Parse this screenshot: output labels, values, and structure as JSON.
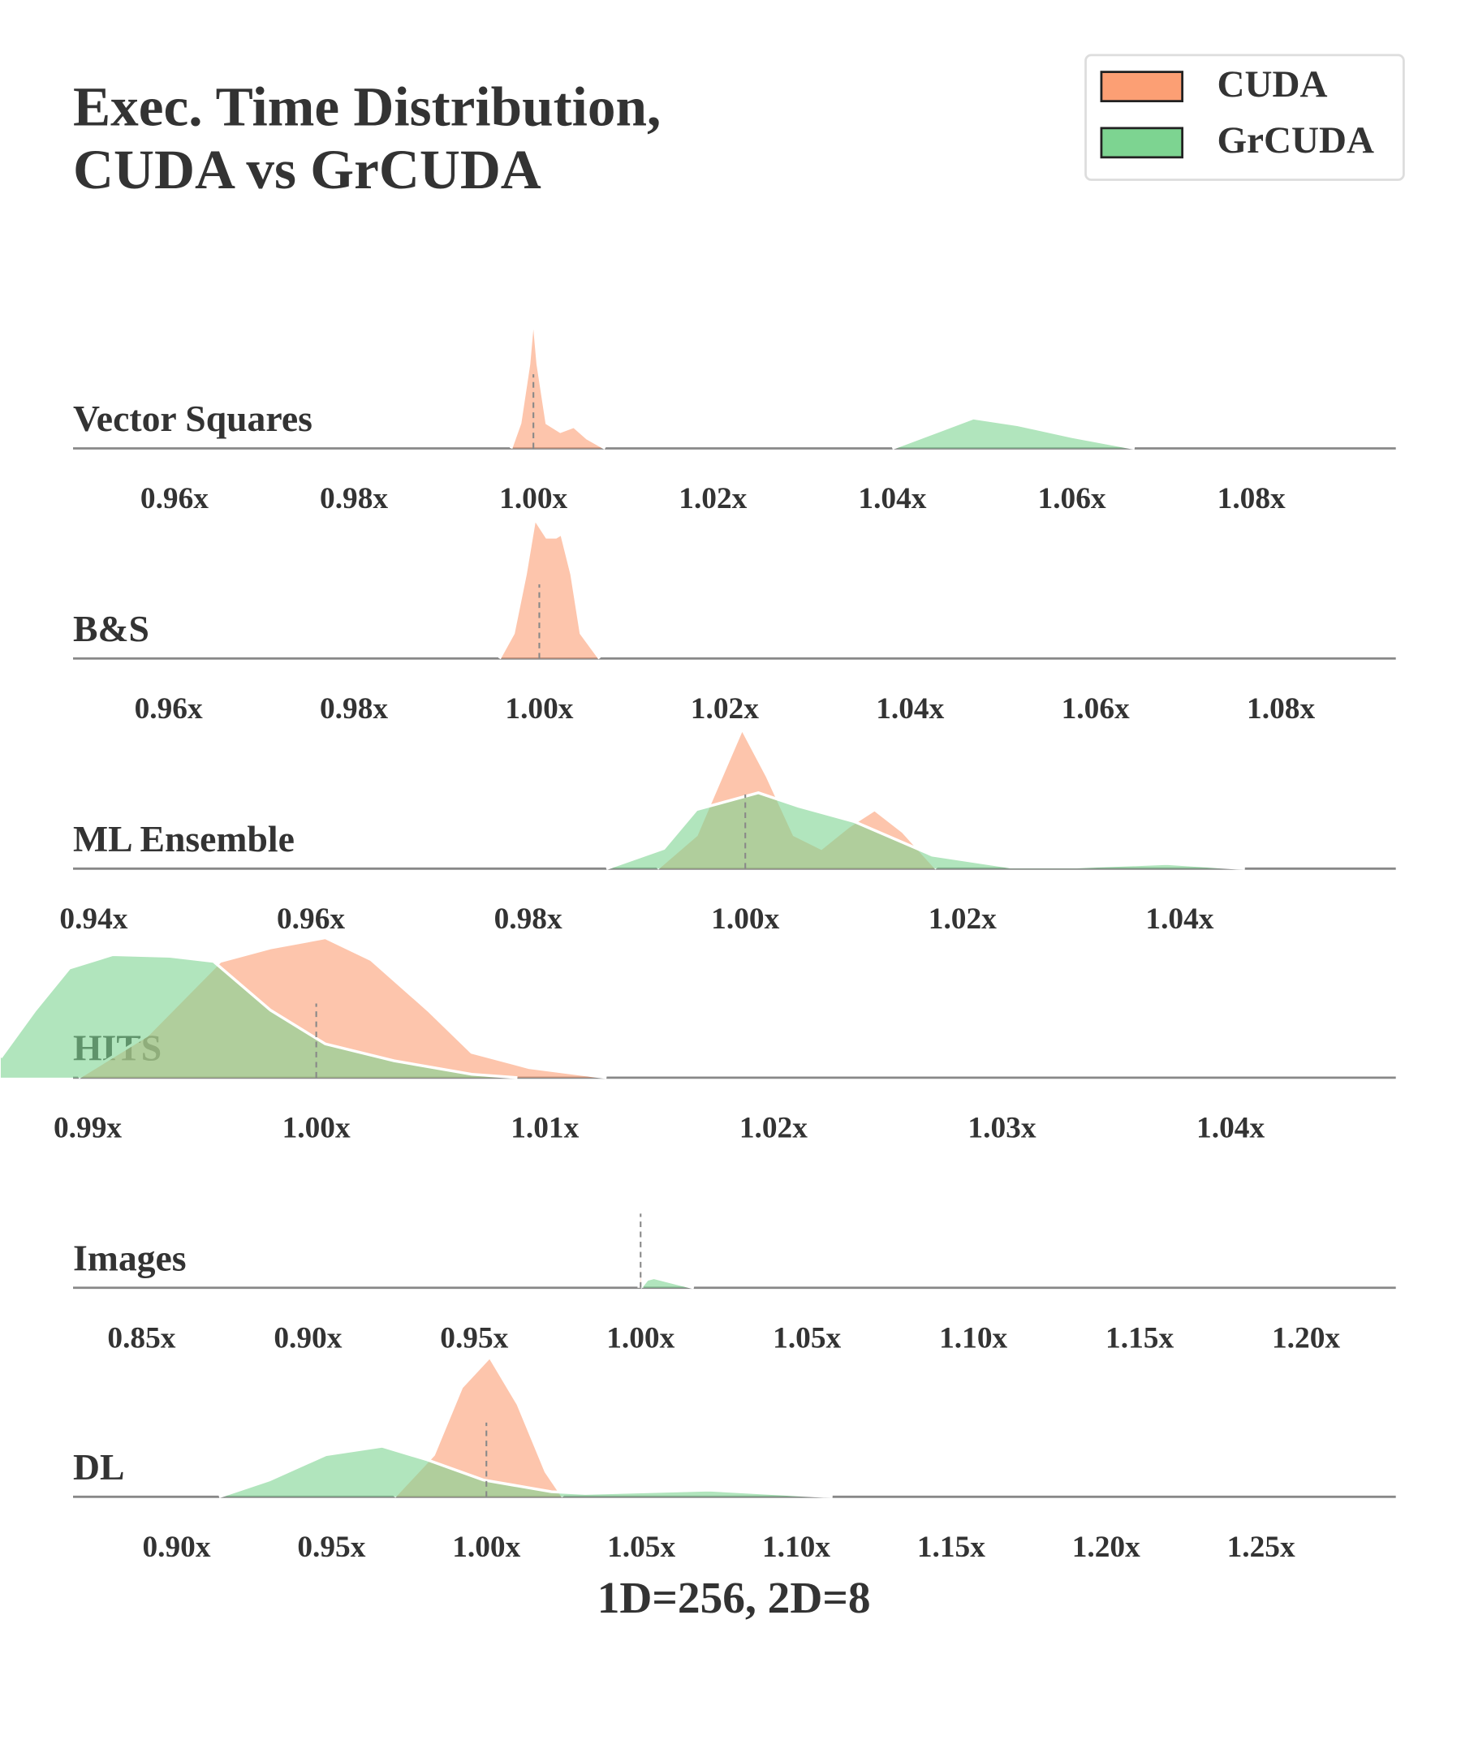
{
  "chart_data": [
    {
      "type": "density",
      "title": [
        "Exec. Time Distribution,",
        "CUDA vs GrCUDA"
      ],
      "legend": "upper right",
      "label": "Vector Squares",
      "xlim": [
        0.9487,
        1.0961
      ],
      "ylim": [
        0,
        1
      ],
      "median": 1.0,
      "xticks": [
        {
          "value": 0.96,
          "label": "0.96x"
        },
        {
          "value": 0.98,
          "label": "0.98x"
        },
        {
          "value": 1.0,
          "label": "1.00x"
        },
        {
          "value": 1.02,
          "label": "1.02x"
        },
        {
          "value": 1.04,
          "label": "1.04x"
        },
        {
          "value": 1.06,
          "label": "1.06x"
        },
        {
          "value": 1.08,
          "label": "1.08x"
        }
      ],
      "series": [
        {
          "name": "CUDA",
          "color": "#fc9f74",
          "x": [
            0.9975,
            0.9985,
            0.9995,
            1.0,
            1.0005,
            1.0015,
            1.003,
            1.0045,
            1.006,
            1.008
          ],
          "values": [
            0,
            0.15,
            0.5,
            0.8,
            0.5,
            0.15,
            0.1,
            0.13,
            0.06,
            0
          ]
        },
        {
          "name": "GrCUDA",
          "color": "#7dd491",
          "x": [
            1.04,
            1.045,
            1.049,
            1.054,
            1.06,
            1.067
          ],
          "values": [
            0,
            0.1,
            0.18,
            0.14,
            0.07,
            0
          ]
        }
      ]
    },
    {
      "type": "density",
      "label": "B&S",
      "xlim": [
        0.9497,
        1.0924
      ],
      "ylim": [
        0,
        1
      ],
      "median": 1.0,
      "xticks": [
        {
          "value": 0.96,
          "label": "0.96x"
        },
        {
          "value": 0.98,
          "label": "0.98x"
        },
        {
          "value": 1.0,
          "label": "1.00x"
        },
        {
          "value": 1.02,
          "label": "1.02x"
        },
        {
          "value": 1.04,
          "label": "1.04x"
        },
        {
          "value": 1.06,
          "label": "1.06x"
        },
        {
          "value": 1.08,
          "label": "1.08x"
        }
      ],
      "series": [
        {
          "name": "CUDA",
          "color": "#fc9f74",
          "x": [
            0.9957,
            0.9972,
            0.9985,
            0.9995,
            1.0008,
            1.0018,
            1.0024,
            1.0035,
            1.0045,
            1.0065
          ],
          "values": [
            0,
            0.15,
            0.5,
            0.83,
            0.72,
            0.72,
            0.74,
            0.5,
            0.15,
            0
          ]
        }
      ]
    },
    {
      "type": "density",
      "label": "ML Ensemble",
      "xlim": [
        0.9381,
        1.0599
      ],
      "ylim": [
        0,
        1
      ],
      "median": 1.0,
      "xticks": [
        {
          "value": 0.94,
          "label": "0.94x"
        },
        {
          "value": 0.96,
          "label": "0.96x"
        },
        {
          "value": 0.98,
          "label": "0.98x"
        },
        {
          "value": 1.0,
          "label": "1.00x"
        },
        {
          "value": 1.02,
          "label": "1.02x"
        },
        {
          "value": 1.04,
          "label": "1.04x"
        }
      ],
      "series": [
        {
          "name": "CUDA",
          "color": "#fc9f74",
          "x": [
            0.9919,
            0.9955,
            0.9975,
            0.9997,
            1.002,
            1.0045,
            1.007,
            1.0095,
            1.0119,
            1.0145,
            1.0176
          ],
          "values": [
            0,
            0.2,
            0.5,
            0.83,
            0.55,
            0.2,
            0.12,
            0.25,
            0.35,
            0.22,
            0
          ]
        },
        {
          "name": "GrCUDA",
          "color": "#7dd491",
          "x": [
            0.9872,
            0.9925,
            0.9955,
            1.0012,
            1.0049,
            1.01,
            1.0172,
            1.0244,
            1.0305,
            1.0388,
            1.046
          ],
          "values": [
            0,
            0.12,
            0.35,
            0.45,
            0.37,
            0.28,
            0.08,
            0.01,
            0.01,
            0.03,
            0
          ]
        }
      ]
    },
    {
      "type": "density",
      "label": "HITS",
      "xlim": [
        0.98936,
        1.04723
      ],
      "ylim": [
        0,
        1
      ],
      "median": 1.0,
      "xticks": [
        {
          "value": 0.99,
          "label": "0.99x"
        },
        {
          "value": 1.0,
          "label": "1.00x"
        },
        {
          "value": 1.01,
          "label": "1.01x"
        },
        {
          "value": 1.02,
          "label": "1.02x"
        },
        {
          "value": 1.03,
          "label": "1.03x"
        },
        {
          "value": 1.04,
          "label": "1.04x"
        }
      ],
      "series": [
        {
          "name": "CUDA",
          "color": "#fc9f74",
          "x": [
            0.9896,
            0.9926,
            0.9958,
            0.998,
            1.0004,
            1.0024,
            1.0049,
            1.0068,
            1.0093,
            1.0127
          ],
          "values": [
            0,
            0.25,
            0.69,
            0.77,
            0.83,
            0.7,
            0.4,
            0.15,
            0.06,
            0
          ]
        },
        {
          "name": "GrCUDA",
          "color": "#7dd491",
          "x": [
            0.9862,
            0.9877,
            0.9892,
            0.9911,
            0.9936,
            0.9955,
            0.998,
            1.0004,
            1.0034,
            1.0068,
            1.0088
          ],
          "values": [
            0.12,
            0.4,
            0.65,
            0.73,
            0.72,
            0.69,
            0.4,
            0.2,
            0.1,
            0.02,
            0
          ]
        }
      ]
    },
    {
      "type": "density",
      "label": "Images",
      "xlim": [
        0.8294,
        1.227
      ],
      "ylim": [
        0,
        1
      ],
      "median": 1.0,
      "xticks": [
        {
          "value": 0.85,
          "label": "0.85x"
        },
        {
          "value": 0.9,
          "label": "0.90x"
        },
        {
          "value": 0.95,
          "label": "0.95x"
        },
        {
          "value": 1.0,
          "label": "1.00x"
        },
        {
          "value": 1.05,
          "label": "1.05x"
        },
        {
          "value": 1.1,
          "label": "1.10x"
        },
        {
          "value": 1.15,
          "label": "1.15x"
        },
        {
          "value": 1.2,
          "label": "1.20x"
        }
      ],
      "series": [
        {
          "name": "CUDA",
          "color": "#fc9f74",
          "x": [
            0.9995,
            1.0,
            1.0005
          ],
          "values": [
            0,
            0.77,
            0
          ]
        },
        {
          "name": "GrCUDA",
          "color": "#7dd491",
          "x": [
            1.0,
            1.002,
            1.004,
            1.01,
            1.016
          ],
          "values": [
            0,
            0.05,
            0.06,
            0.03,
            0
          ]
        }
      ]
    },
    {
      "type": "density",
      "label": "DL",
      "xlim": [
        0.8666,
        1.2935
      ],
      "ylim": [
        0,
        1
      ],
      "median": 1.0,
      "xlabel": "1D=256, 2D=8",
      "xticks": [
        {
          "value": 0.9,
          "label": "0.90x"
        },
        {
          "value": 0.95,
          "label": "0.95x"
        },
        {
          "value": 1.0,
          "label": "1.00x"
        },
        {
          "value": 1.05,
          "label": "1.05x"
        },
        {
          "value": 1.1,
          "label": "1.10x"
        },
        {
          "value": 1.15,
          "label": "1.15x"
        },
        {
          "value": 1.2,
          "label": "1.20x"
        },
        {
          "value": 1.25,
          "label": "1.25x"
        }
      ],
      "series": [
        {
          "name": "CUDA",
          "color": "#fc9f74",
          "x": [
            0.9703,
            0.983,
            0.992,
            1.0011,
            1.0102,
            1.0192,
            1.0247
          ],
          "values": [
            0,
            0.25,
            0.65,
            0.83,
            0.55,
            0.15,
            0
          ]
        },
        {
          "name": "GrCUDA",
          "color": "#7dd491",
          "x": [
            0.9137,
            0.93,
            0.9482,
            0.9663,
            0.9808,
            0.999,
            1.021,
            1.0319,
            1.0718,
            1.1117
          ],
          "values": [
            0,
            0.1,
            0.25,
            0.3,
            0.22,
            0.1,
            0.03,
            0.02,
            0.04,
            0
          ]
        }
      ]
    }
  ]
}
